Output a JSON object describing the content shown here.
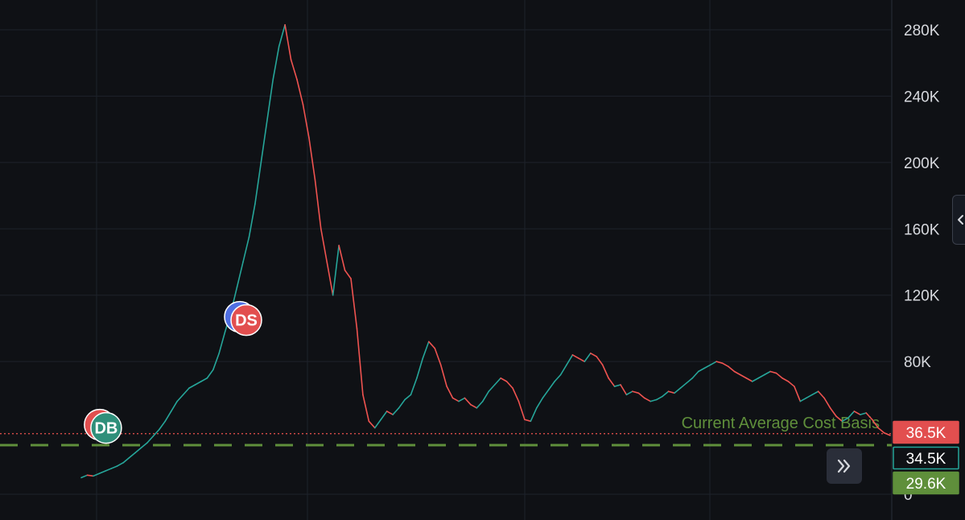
{
  "chart_data": {
    "type": "line",
    "ylim": [
      0,
      290000
    ],
    "y_ticks": [
      "280K",
      "240K",
      "200K",
      "160K",
      "120K",
      "80K",
      "0"
    ],
    "y_tick_values": [
      280000,
      240000,
      200000,
      160000,
      120000,
      80000,
      0
    ],
    "x_vertical_gridlines": 5,
    "grid": true,
    "series": [
      {
        "values": [
          10000,
          11500,
          11000,
          12500,
          14000,
          15500,
          17000,
          19000,
          22000,
          25000,
          28000,
          31000,
          35000,
          39000,
          44000,
          50000,
          56000,
          60000,
          64000,
          66000,
          68000,
          70000,
          75000,
          85000,
          98000,
          110000,
          125000,
          140000,
          155000,
          175000,
          200000,
          225000,
          250000,
          270000,
          283000,
          262000,
          250000,
          235000,
          215000,
          190000,
          160000,
          140000,
          120000,
          150000,
          135000,
          130000,
          100000,
          60000,
          44000,
          40000,
          45000,
          50000,
          48000,
          52000,
          57000,
          60000,
          70000,
          82000,
          92000,
          88000,
          78000,
          65000,
          58000,
          56000,
          58000,
          54000,
          52000,
          56000,
          62000,
          66000,
          70000,
          68000,
          64000,
          56000,
          45000,
          44000,
          52000,
          58000,
          63000,
          68000,
          72000,
          78000,
          84000,
          82000,
          80000,
          85000,
          83000,
          78000,
          70000,
          65000,
          66000,
          60000,
          62000,
          61000,
          58000,
          56000,
          57000,
          59000,
          62000,
          61000,
          64000,
          67000,
          70000,
          74000,
          76000,
          78000,
          80000,
          79000,
          77000,
          74000,
          72000,
          70000,
          68000,
          70000,
          72000,
          74000,
          73000,
          70000,
          68000,
          65000,
          56000,
          58000,
          60000,
          62000,
          58000,
          52000,
          47000,
          44000,
          46000,
          50000,
          48000,
          49000,
          45000,
          40000,
          37000,
          35500
        ],
        "color_up": "#26a69a",
        "color_down": "#ef5350"
      }
    ],
    "reference_lines": [
      {
        "label": "Current Average Cost Basis",
        "value": 36500,
        "color": "#ef5350",
        "style": "dotted"
      },
      {
        "value": 29600,
        "color": "#5f8f3b",
        "style": "dashed"
      }
    ],
    "price_tags": [
      {
        "text": "36.5K",
        "value": 36500,
        "bg": "#e24f4f",
        "fg": "#ffffff",
        "border": "#e24f4f"
      },
      {
        "text": "34.5K",
        "value": 34500,
        "bg": "#0f1115",
        "fg": "#5fd3c0",
        "border": "#26a69a"
      },
      {
        "text": "29.6K",
        "value": 29600,
        "bg": "#5f8f3b",
        "fg": "#ffffff",
        "border": "#5f8f3b"
      }
    ],
    "markers": [
      {
        "label": "DS",
        "value": 105000,
        "series_index": 27,
        "front_color": "#e24f4f",
        "back_color": "#4f6fe2"
      },
      {
        "label": "DB",
        "value": 40000,
        "series_index": 2,
        "front_color": "#2f8f7a",
        "back_color": "#e24f4f"
      }
    ]
  },
  "colors": {
    "background": "#0f1115",
    "grid": "#1e222b",
    "axis_text": "#d7d9de",
    "separator": "#2a2e39"
  },
  "controls": {
    "scroll_icon": "double-chevron-right-icon",
    "panel_toggle_icon": "chevron-left-icon"
  }
}
